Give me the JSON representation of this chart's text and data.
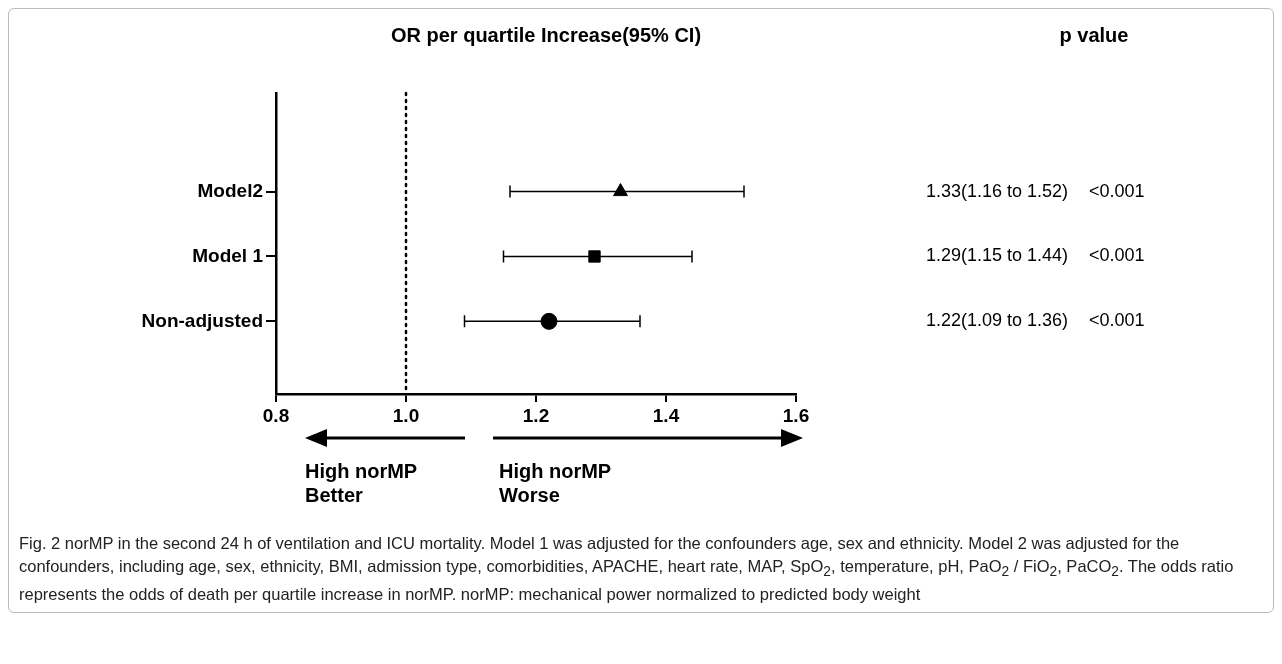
{
  "chart_data": {
    "type": "scatter",
    "title": "OR per quartile Increase(95% CI)",
    "orientation": "horizontal",
    "categories": [
      "Model2",
      "Model 1",
      "Non-adjusted"
    ],
    "series": [
      {
        "color": "#000000",
        "marker": "triangle",
        "values": [
          1.33,
          null,
          null
        ],
        "errors": [
          [
            1.16,
            1.52
          ],
          null,
          null
        ]
      },
      {
        "color": "#000000",
        "marker": "square",
        "values": [
          null,
          1.29,
          null
        ],
        "errors": [
          null,
          [
            1.15,
            1.44
          ],
          null
        ]
      },
      {
        "color": "#000000",
        "marker": "circle",
        "values": [
          null,
          null,
          1.22
        ],
        "errors": [
          null,
          null,
          [
            1.09,
            1.36
          ]
        ]
      }
    ],
    "xlim": [
      0.8,
      1.6
    ],
    "xticks": [
      0.8,
      {
        "value": 1,
        "label": "1.0"
      },
      1.2,
      1.4,
      1.6
    ],
    "ref_lines": [
      {
        "axis": "x",
        "value": 1,
        "line_style": "dotted",
        "color": "#000000"
      }
    ],
    "grid": false,
    "legend": false,
    "annotations": [
      "p value",
      "1.33(1.16 to 1.52)",
      "<0.001",
      "1.29(1.15 to 1.44)",
      "<0.001",
      "1.22(1.09 to 1.36)",
      "<0.001",
      "High norMP Better",
      "High norMP Worse",
      "Fig. 2  norMP in the second 24 h of ventilation and ICU mortality. Model 1 was adjusted for the confounders age, sex and ethnicity. Model 2 was adjusted for the confounders, including age, sex, ethnicity, BMI, admission type, comorbidities, APACHE, heart rate, MAP, SpO$_{2}$, temperature, pH, PaO$_{2}$ / FiO$_{2}$, PaCO$_{2}$. The odds ratio represents the odds of death per quartile increase in norMP. norMP: mechanical power normalized to predicted body weight"
    ]
  }
}
